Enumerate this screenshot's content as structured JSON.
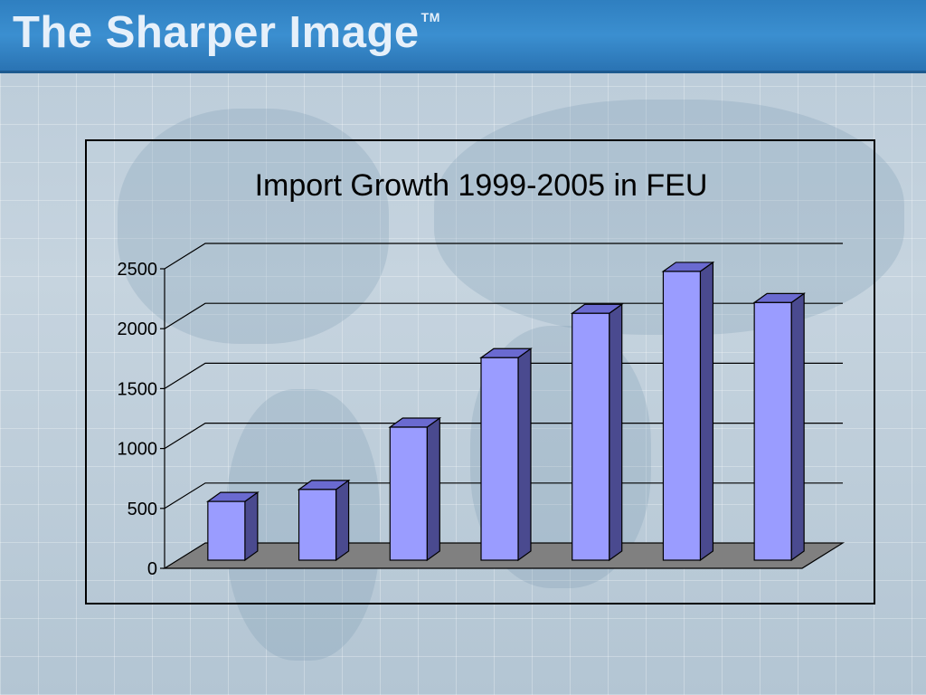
{
  "header": {
    "title": "The Sharper Image",
    "trademark": "TM",
    "bar_color": "#3b8fd0"
  },
  "chart_data": {
    "type": "bar",
    "title": "Import Growth 1999-2005 in FEU",
    "xlabel": "",
    "ylabel": "",
    "categories": [
      "",
      "",
      "",
      "",
      "",
      "",
      ""
    ],
    "values": [
      490,
      590,
      1110,
      1690,
      2060,
      2410,
      2150
    ],
    "ylim": [
      0,
      2500
    ],
    "yticks": [
      0,
      500,
      1000,
      1500,
      2000,
      2500
    ],
    "grid": true,
    "legend": "none",
    "three_d": true,
    "colors": {
      "bar_front": "#9a9cff",
      "bar_side": "#4a4a8f",
      "bar_top": "#6a6ad0",
      "floor": "#808080"
    }
  }
}
